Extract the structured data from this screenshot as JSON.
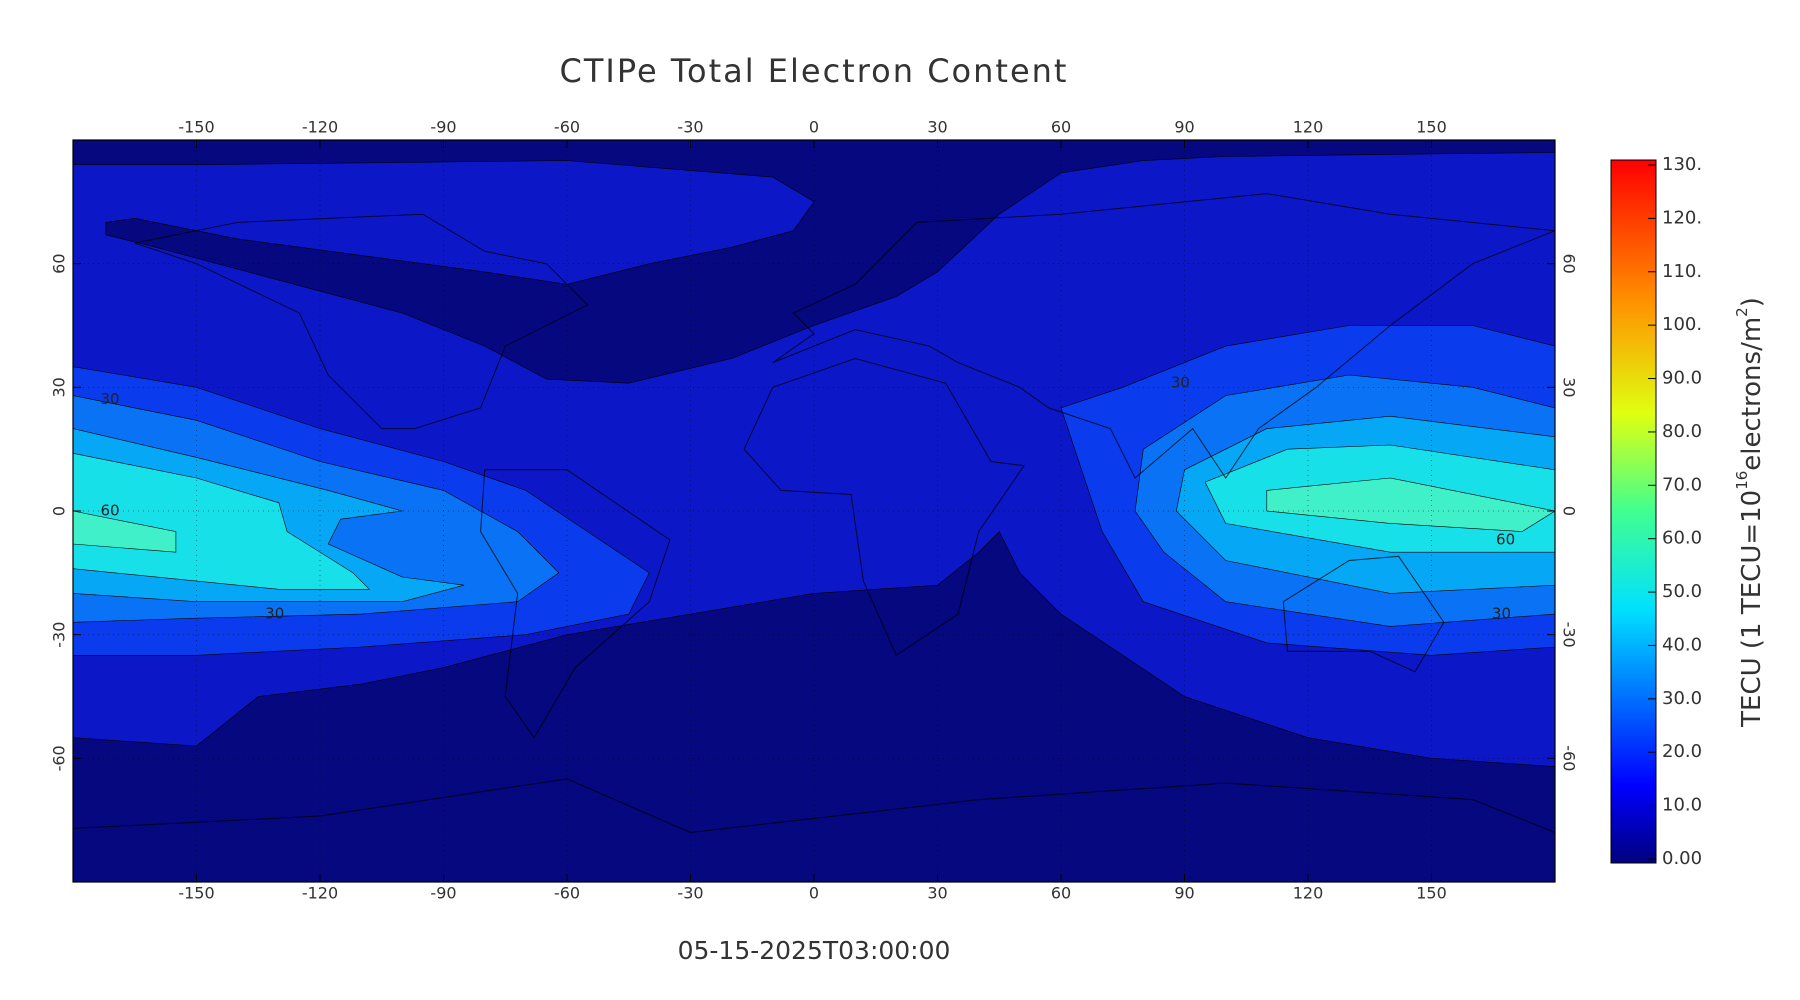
{
  "title": "CTIPe Total Electron Content",
  "timestamp": "05-15-2025T03:00:00",
  "chart_data": {
    "type": "contour",
    "xlim": [
      -180,
      180
    ],
    "ylim": [
      -90,
      90
    ],
    "xticks": [
      -150,
      -120,
      -90,
      -60,
      -30,
      0,
      30,
      60,
      90,
      120,
      150
    ],
    "yticks": [
      -60,
      -30,
      0,
      30,
      60
    ],
    "grid": true,
    "contour_labels": [
      30,
      60,
      30,
      30,
      60,
      30
    ],
    "colorbar": {
      "label": [
        "TECU (1 TECU=10",
        "16",
        "electrons/m",
        "2",
        ")"
      ],
      "lim": [
        0,
        130
      ],
      "ticks": [
        {
          "value": 0,
          "label": "0.00"
        },
        {
          "value": 10,
          "label": "10.0"
        },
        {
          "value": 20,
          "label": "20.0"
        },
        {
          "value": 30,
          "label": "30.0"
        },
        {
          "value": 40,
          "label": "40.0"
        },
        {
          "value": 50,
          "label": "50.0"
        },
        {
          "value": 60,
          "label": "60.0"
        },
        {
          "value": 70,
          "label": "70.0"
        },
        {
          "value": 80,
          "label": "80.0"
        },
        {
          "value": 90,
          "label": "90.0"
        },
        {
          "value": 100,
          "label": "100."
        },
        {
          "value": 110,
          "label": "110."
        },
        {
          "value": 120,
          "label": "120."
        },
        {
          "value": 130,
          "label": "130."
        }
      ]
    }
  }
}
